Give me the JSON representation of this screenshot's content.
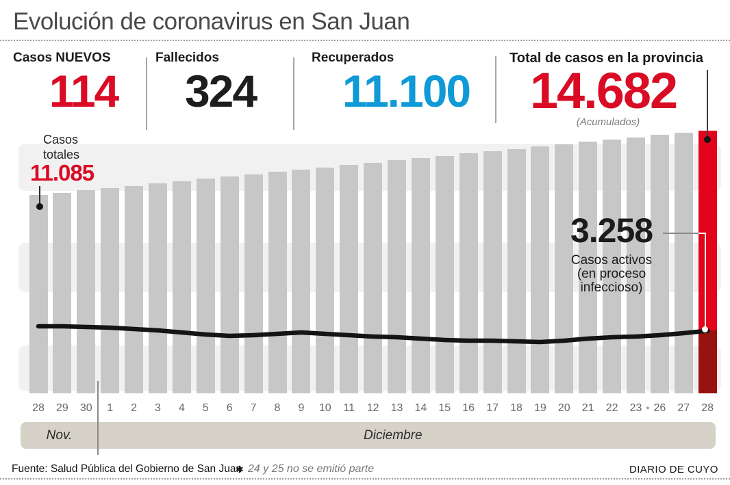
{
  "title": "Evolución de coronavirus en San Juan",
  "colors": {
    "accent_red": "#da0b24",
    "bright_red_bar": "#e2041c",
    "dark_red_active_segment": "#96130f",
    "blue": "#0f9ad7",
    "black": "#1d1d1b",
    "bar_gray": "#c7c7c7",
    "stripe_gray": "#f1f1f2",
    "month_band": "#d6d2c7"
  },
  "stats": [
    {
      "label": "Casos NUEVOS",
      "value": "114"
    },
    {
      "label": "Fallecidos",
      "value": "324"
    },
    {
      "label": "Recuperados",
      "value": "11.100"
    },
    {
      "label": "Total de casos en la provincia",
      "value": "14.682",
      "note": "(Acumulados)"
    }
  ],
  "totals_callout": {
    "label_lines": [
      "Casos",
      "totales"
    ],
    "value": "11.085"
  },
  "active_callout": {
    "value": "3.258",
    "label_lines": [
      "Casos activos",
      "(en proceso",
      "infeccioso)"
    ]
  },
  "chart_data": {
    "type": "bar",
    "title": "Evolución de coronavirus en San Juan",
    "categories": [
      "28",
      "29",
      "30",
      "1",
      "2",
      "3",
      "4",
      "5",
      "6",
      "7",
      "8",
      "9",
      "10",
      "11",
      "12",
      "13",
      "14",
      "15",
      "16",
      "17",
      "18",
      "19",
      "20",
      "21",
      "22",
      "23",
      "26",
      "27",
      "28"
    ],
    "gap_marker": "*",
    "months": [
      {
        "label": "Nov.",
        "days": 3
      },
      {
        "label": "Diciembre",
        "days": 26
      }
    ],
    "series": [
      {
        "name": "Casos totales (acumulados)",
        "type": "bar",
        "first_value": 11085,
        "last_value": 14682,
        "values": [
          11085,
          11214,
          11343,
          11472,
          11601,
          11730,
          11859,
          11988,
          12117,
          12246,
          12375,
          12504,
          12633,
          12762,
          12891,
          13020,
          13149,
          13278,
          13407,
          13536,
          13665,
          13794,
          13923,
          14052,
          14181,
          14310,
          14439,
          14568,
          14682
        ]
      },
      {
        "name": "Casos activos (en proceso infeccioso)",
        "type": "line",
        "last_value": 3258,
        "values": [
          3488,
          3488,
          3452,
          3417,
          3345,
          3274,
          3167,
          3060,
          2989,
          3025,
          3096,
          3167,
          3096,
          3025,
          2954,
          2918,
          2847,
          2776,
          2740,
          2740,
          2705,
          2669,
          2740,
          2847,
          2918,
          2954,
          3025,
          3132,
          3258
        ]
      }
    ],
    "legend_position": "none",
    "grid": "horizontal-bands"
  },
  "footer": {
    "source": "Fuente: Salud Pública del Gobierno de San Juan",
    "footnote_marker": "✱",
    "footnote": "24 y 25 no se emitió parte",
    "credit": "DIARIO DE CUYO"
  }
}
